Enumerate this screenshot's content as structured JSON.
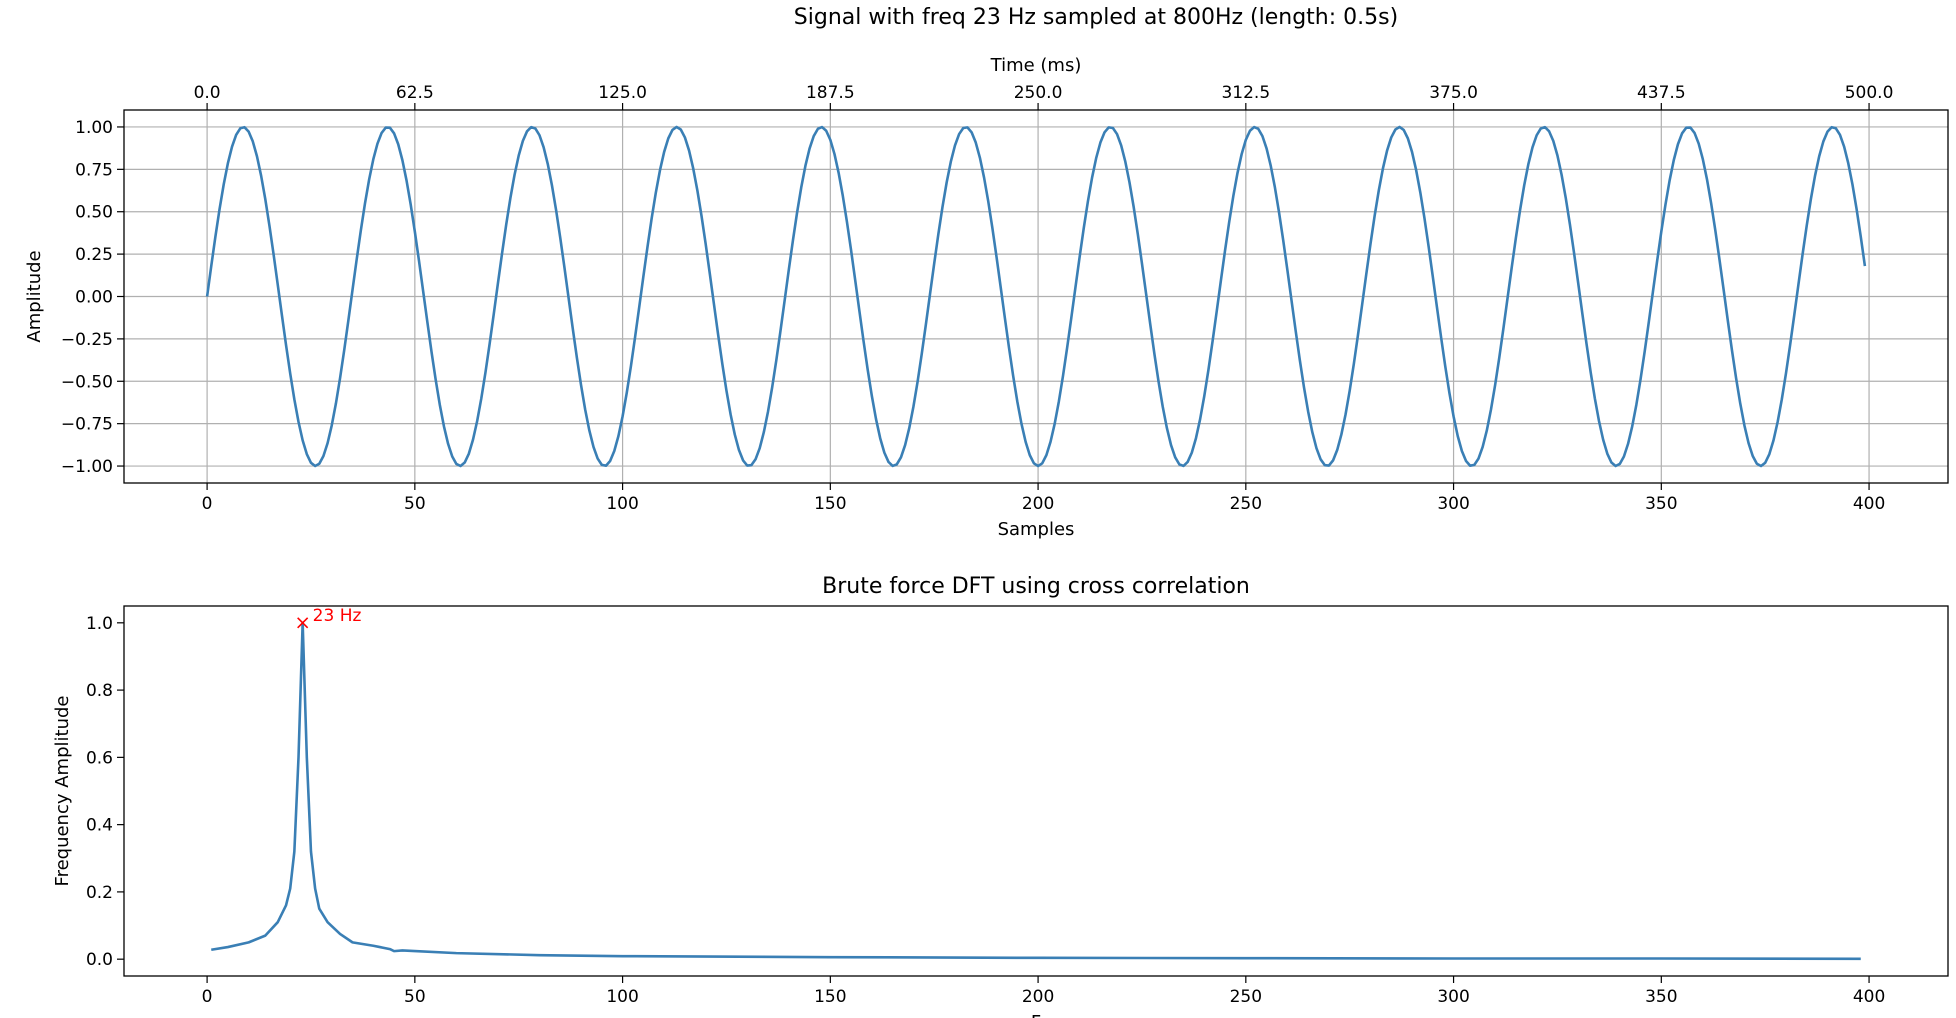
{
  "chart_data": [
    {
      "type": "line",
      "title": "Signal with freq 23 Hz sampled at 800Hz (length: 0.5s)",
      "xlabel": "Samples",
      "ylabel": "Amplitude",
      "x2label": "Time (ms)",
      "xlim": [
        -20,
        419
      ],
      "ylim": [
        -1.1,
        1.1
      ],
      "grid": true,
      "xticks": [
        0,
        50,
        100,
        150,
        200,
        250,
        300,
        350,
        400
      ],
      "xtick_labels": [
        "0",
        "50",
        "100",
        "150",
        "200",
        "250",
        "300",
        "350",
        "400"
      ],
      "yticks": [
        1.0,
        0.75,
        0.5,
        0.25,
        0.0,
        -0.25,
        -0.5,
        -0.75,
        -1.0
      ],
      "ytick_labels": [
        "1.00",
        "0.75",
        "0.50",
        "0.25",
        "0.00",
        "−0.25",
        "−0.50",
        "−0.75",
        "−1.00"
      ],
      "x2ticks_ms": [
        0.0,
        62.5,
        125.0,
        187.5,
        250.0,
        312.5,
        375.0,
        437.5,
        500.0
      ],
      "x2tick_labels": [
        "0.0",
        "62.5",
        "125.0",
        "187.5",
        "250.0",
        "312.5",
        "375.0",
        "437.5",
        "500.0"
      ],
      "series": [
        {
          "signal": "sine",
          "frequency_hz": 23,
          "sample_rate_hz": 800,
          "num_samples": 400,
          "color": "#3a7fb5"
        }
      ]
    },
    {
      "type": "line",
      "title": "Brute force DFT using cross correlation",
      "xlabel": "F",
      "ylabel": "Frequency Amplitude",
      "xlim": [
        -20,
        419
      ],
      "ylim": [
        -0.05,
        1.05
      ],
      "grid": false,
      "xticks": [
        0,
        50,
        100,
        150,
        200,
        250,
        300,
        350,
        400
      ],
      "xtick_labels": [
        "0",
        "50",
        "100",
        "150",
        "200",
        "250",
        "300",
        "350",
        "400"
      ],
      "yticks": [
        0.0,
        0.2,
        0.4,
        0.6,
        0.8,
        1.0
      ],
      "ytick_labels": [
        "0.0",
        "0.2",
        "0.4",
        "0.6",
        "0.8",
        "1.0"
      ],
      "series": [
        {
          "x": [
            1,
            5,
            10,
            14,
            17,
            19,
            20,
            21,
            22,
            23,
            24,
            25,
            26,
            27,
            29,
            32,
            35,
            40,
            44,
            45,
            47,
            50,
            60,
            80,
            100,
            150,
            200,
            250,
            300,
            350,
            398
          ],
          "y": [
            0.028,
            0.036,
            0.05,
            0.07,
            0.11,
            0.16,
            0.21,
            0.32,
            0.6,
            1.0,
            0.6,
            0.32,
            0.21,
            0.15,
            0.11,
            0.075,
            0.05,
            0.04,
            0.03,
            0.024,
            0.026,
            0.024,
            0.018,
            0.012,
            0.009,
            0.006,
            0.004,
            0.003,
            0.002,
            0.002,
            0.001
          ],
          "color": "#3a7fb5"
        }
      ],
      "annotation": {
        "x": 23,
        "y": 1.0,
        "text": "23 Hz",
        "color": "#ff0000"
      }
    }
  ]
}
